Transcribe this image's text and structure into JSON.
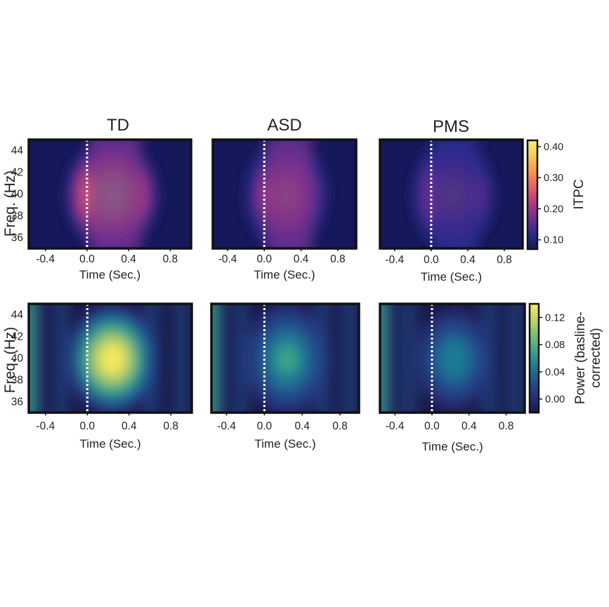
{
  "chart_data": [
    {
      "type": "heatmap",
      "row": "itpc",
      "title": "TD",
      "xlabel": "Time (Sec.)",
      "ylabel": "Freq. (Hz)",
      "xticks": [
        "-0.4",
        "0.0",
        "0.4",
        "0.8"
      ],
      "yticks": [
        "44",
        "42",
        "40",
        "38",
        "36"
      ],
      "xlim": [
        -0.56,
        1.0
      ],
      "ylim": [
        35,
        45
      ],
      "marker_line_x": 0.0,
      "peak_value": 0.42
    },
    {
      "type": "heatmap",
      "row": "itpc",
      "title": "ASD",
      "xlabel": "Time (Sec.)",
      "ylabel": "",
      "xticks": [
        "-0.4",
        "0.0",
        "0.4",
        "0.8"
      ],
      "yticks": [],
      "xlim": [
        -0.56,
        1.0
      ],
      "ylim": [
        35,
        45
      ],
      "marker_line_x": 0.0,
      "peak_value": 0.3
    },
    {
      "type": "heatmap",
      "row": "itpc",
      "title": "PMS",
      "xlabel": "Time (Sec.)",
      "ylabel": "",
      "xticks": [
        "-0.4",
        "0.0",
        "0.4",
        "0.8"
      ],
      "yticks": [],
      "xlim": [
        -0.56,
        1.0
      ],
      "ylim": [
        35,
        45
      ],
      "marker_line_x": 0.0,
      "peak_value": 0.25
    },
    {
      "type": "heatmap",
      "row": "power",
      "title": "",
      "xlabel": "Time (Sec.)",
      "ylabel": "Freq. (Hz)",
      "xticks": [
        "-0.4",
        "0.0",
        "0.4",
        "0.8"
      ],
      "yticks": [
        "44",
        "42",
        "40",
        "38",
        "36"
      ],
      "xlim": [
        -0.56,
        1.0
      ],
      "ylim": [
        35,
        45
      ],
      "marker_line_x": 0.0,
      "peak_value": 0.14
    },
    {
      "type": "heatmap",
      "row": "power",
      "title": "",
      "xlabel": "Time (Sec.)",
      "ylabel": "",
      "xticks": [
        "-0.4",
        "0.0",
        "0.4",
        "0.8"
      ],
      "yticks": [],
      "xlim": [
        -0.56,
        1.0
      ],
      "ylim": [
        35,
        45
      ],
      "marker_line_x": 0.0,
      "peak_value": 0.06
    },
    {
      "type": "heatmap",
      "row": "power",
      "title": "",
      "xlabel": "Time (Sec.)",
      "ylabel": "",
      "xticks": [
        "-0.4",
        "0.0",
        "0.4",
        "0.8"
      ],
      "yticks": [],
      "xlim": [
        -0.56,
        1.0
      ],
      "ylim": [
        35,
        45
      ],
      "marker_line_x": 0.0,
      "peak_value": 0.05
    }
  ],
  "colorbars": {
    "itpc": {
      "label": "ITPC",
      "ticks": [
        "0.40",
        "0.30",
        "0.20",
        "0.10"
      ],
      "range": [
        0.07,
        0.42
      ],
      "colors": [
        "#15185a",
        "#2c2a8c",
        "#6f2e8f",
        "#b23b7f",
        "#e5616a",
        "#f6964f",
        "#f8ca5f",
        "#f4f073"
      ]
    },
    "power": {
      "label_line1": "Power (basline-",
      "label_line2": "corrected)",
      "ticks": [
        "0.12",
        "0.08",
        "0.04",
        "0.00"
      ],
      "range": [
        -0.02,
        0.14
      ],
      "colors": [
        "#1a1748",
        "#25307a",
        "#21508f",
        "#1f7a94",
        "#3ca58a",
        "#7cc070",
        "#c9d464",
        "#f6e85f"
      ]
    }
  }
}
